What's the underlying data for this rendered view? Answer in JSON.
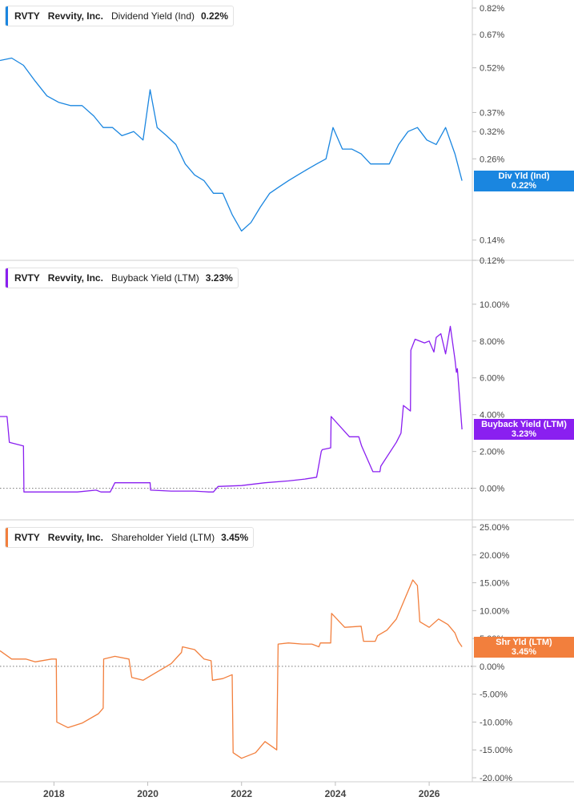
{
  "ticker": "RVTY",
  "company": "Revvity, Inc.",
  "x_ticks": [
    {
      "label": "2018",
      "year": 2018.0
    },
    {
      "label": "2020",
      "year": 2020.0
    },
    {
      "label": "2022",
      "year": 2022.0
    },
    {
      "label": "2024",
      "year": 2024.0
    },
    {
      "label": "2026",
      "year": 2026.0
    }
  ],
  "chart_data": [
    {
      "type": "line",
      "metric": "Dividend Yield (Ind)",
      "value_label": "0.22%",
      "tag_label": "Div Yld (Ind)",
      "tag_value": "0.22%",
      "color": "#1a86e0",
      "scale": "log",
      "ylim": [
        0.12,
        0.82
      ],
      "yticks": [
        "0.82%",
        "0.67%",
        "0.52%",
        "0.37%",
        "0.32%",
        "0.26%",
        "0.14%",
        "0.12%"
      ],
      "ytick_values": [
        0.82,
        0.67,
        0.52,
        0.37,
        0.32,
        0.26,
        0.14,
        0.12
      ],
      "x": [
        2016.85,
        2017.1,
        2017.35,
        2017.6,
        2017.85,
        2018.1,
        2018.35,
        2018.6,
        2018.85,
        2019.05,
        2019.25,
        2019.45,
        2019.7,
        2019.9,
        2020.05,
        2020.2,
        2020.4,
        2020.6,
        2020.8,
        2021.0,
        2021.2,
        2021.4,
        2021.6,
        2021.8,
        2022.0,
        2022.2,
        2022.4,
        2022.6,
        2022.8,
        2023.0,
        2023.2,
        2023.4,
        2023.6,
        2023.8,
        2023.95,
        2024.15,
        2024.35,
        2024.55,
        2024.75,
        2024.95,
        2025.15,
        2025.35,
        2025.55,
        2025.75,
        2025.95,
        2026.15,
        2026.35,
        2026.55,
        2026.7
      ],
      "y": [
        0.55,
        0.56,
        0.53,
        0.47,
        0.42,
        0.4,
        0.39,
        0.39,
        0.36,
        0.33,
        0.33,
        0.31,
        0.32,
        0.3,
        0.44,
        0.33,
        0.31,
        0.29,
        0.25,
        0.23,
        0.22,
        0.2,
        0.2,
        0.17,
        0.15,
        0.16,
        0.18,
        0.2,
        0.21,
        0.22,
        0.23,
        0.24,
        0.25,
        0.26,
        0.33,
        0.28,
        0.28,
        0.27,
        0.25,
        0.25,
        0.25,
        0.29,
        0.32,
        0.33,
        0.3,
        0.29,
        0.33,
        0.27,
        0.22
      ]
    },
    {
      "type": "line",
      "metric": "Buyback Yield (LTM)",
      "value_label": "3.23%",
      "tag_label": "Buyback Yield (LTM)",
      "tag_value": "3.23%",
      "color": "#8a1ff0",
      "scale": "linear",
      "ylim": [
        -0.8,
        10.6
      ],
      "yticks": [
        "10.00%",
        "8.00%",
        "6.00%",
        "4.00%",
        "2.00%",
        "0.00%"
      ],
      "ytick_values": [
        10,
        8,
        6,
        4,
        2,
        0
      ],
      "zero_line": true,
      "x": [
        2016.85,
        2017.0,
        2017.05,
        2017.35,
        2017.36,
        2018.5,
        2018.9,
        2019.0,
        2019.2,
        2019.3,
        2019.31,
        2020.0,
        2020.05,
        2020.06,
        2020.5,
        2021.0,
        2021.3,
        2021.4,
        2021.5,
        2022.0,
        2022.5,
        2023.0,
        2023.35,
        2023.6,
        2023.7,
        2023.72,
        2023.9,
        2023.91,
        2024.3,
        2024.5,
        2024.56,
        2024.8,
        2024.95,
        2024.97,
        2025.3,
        2025.4,
        2025.45,
        2025.6,
        2025.61,
        2025.7,
        2025.9,
        2026.0,
        2026.1,
        2026.15,
        2026.25,
        2026.35,
        2026.45,
        2026.55,
        2026.58,
        2026.6,
        2026.7
      ],
      "y": [
        3.9,
        3.9,
        2.5,
        2.3,
        -0.2,
        -0.2,
        -0.1,
        -0.2,
        -0.2,
        0.3,
        0.3,
        0.3,
        0.3,
        -0.1,
        -0.15,
        -0.15,
        -0.2,
        -0.2,
        0.1,
        0.15,
        0.3,
        0.4,
        0.5,
        0.6,
        2.0,
        2.1,
        2.2,
        3.9,
        2.8,
        2.8,
        2.3,
        0.9,
        0.9,
        1.2,
        2.5,
        3.0,
        4.5,
        4.2,
        7.5,
        8.1,
        7.9,
        8.0,
        7.4,
        8.2,
        8.4,
        7.3,
        8.8,
        7.0,
        6.3,
        6.5,
        3.2
      ]
    },
    {
      "type": "line",
      "metric": "Shareholder Yield (LTM)",
      "value_label": "3.45%",
      "tag_label": "Shr Yld (LTM)",
      "tag_value": "3.45%",
      "color": "#f27f3d",
      "scale": "linear",
      "ylim": [
        -20.0,
        25.0
      ],
      "yticks": [
        "25.00%",
        "20.00%",
        "15.00%",
        "10.00%",
        "5.00%",
        "0.00%",
        "-5.00%",
        "-10.00%",
        "-15.00%",
        "-20.00%"
      ],
      "ytick_values": [
        25,
        20,
        15,
        10,
        5,
        0,
        -5,
        -10,
        -15,
        -20
      ],
      "zero_line": true,
      "x": [
        2016.85,
        2017.1,
        2017.4,
        2017.6,
        2017.95,
        2018.05,
        2018.06,
        2018.3,
        2018.6,
        2018.95,
        2019.05,
        2019.06,
        2019.3,
        2019.6,
        2019.66,
        2019.9,
        2020.1,
        2020.3,
        2020.5,
        2020.72,
        2020.74,
        2021.0,
        2021.2,
        2021.35,
        2021.38,
        2021.6,
        2021.8,
        2021.82,
        2022.0,
        2022.3,
        2022.5,
        2022.75,
        2022.78,
        2023.0,
        2023.3,
        2023.5,
        2023.65,
        2023.68,
        2023.9,
        2023.92,
        2024.2,
        2024.55,
        2024.6,
        2024.85,
        2024.9,
        2025.1,
        2025.3,
        2025.5,
        2025.65,
        2025.75,
        2025.8,
        2026.0,
        2026.2,
        2026.4,
        2026.55,
        2026.62,
        2026.7
      ],
      "y": [
        2.8,
        1.3,
        1.3,
        0.8,
        1.3,
        1.3,
        -10.0,
        -11.0,
        -10.2,
        -8.5,
        -7.5,
        1.3,
        1.8,
        1.3,
        -2.0,
        -2.5,
        -1.5,
        -0.5,
        0.5,
        2.5,
        3.5,
        3.0,
        1.3,
        1.0,
        -2.5,
        -2.2,
        -1.5,
        -15.5,
        -16.5,
        -15.5,
        -13.5,
        -15.0,
        4.0,
        4.2,
        4.0,
        4.0,
        3.5,
        4.2,
        4.2,
        9.5,
        7.0,
        7.2,
        4.5,
        4.5,
        5.5,
        6.5,
        8.5,
        12.5,
        15.5,
        14.5,
        8.0,
        7.0,
        8.5,
        7.5,
        6.0,
        4.5,
        3.5
      ]
    }
  ]
}
